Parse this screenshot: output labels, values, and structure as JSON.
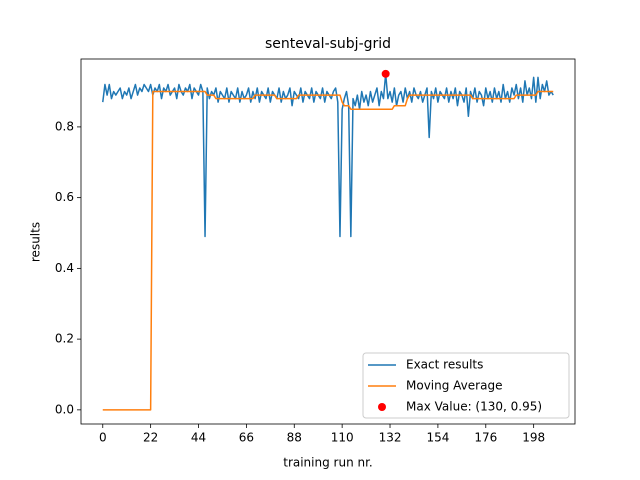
{
  "chart_data": {
    "type": "line",
    "title": "senteval-subj-grid",
    "xlabel": "training run nr.",
    "ylabel": "results",
    "x": [
      0,
      1,
      2,
      3,
      4,
      5,
      6,
      7,
      8,
      9,
      10,
      11,
      12,
      13,
      14,
      15,
      16,
      17,
      18,
      19,
      20,
      21,
      22,
      23,
      24,
      25,
      26,
      27,
      28,
      29,
      30,
      31,
      32,
      33,
      34,
      35,
      36,
      37,
      38,
      39,
      40,
      41,
      42,
      43,
      44,
      45,
      46,
      47,
      48,
      49,
      50,
      51,
      52,
      53,
      54,
      55,
      56,
      57,
      58,
      59,
      60,
      61,
      62,
      63,
      64,
      65,
      66,
      67,
      68,
      69,
      70,
      71,
      72,
      73,
      74,
      75,
      76,
      77,
      78,
      79,
      80,
      81,
      82,
      83,
      84,
      85,
      86,
      87,
      88,
      89,
      90,
      91,
      92,
      93,
      94,
      95,
      96,
      97,
      98,
      99,
      100,
      101,
      102,
      103,
      104,
      105,
      106,
      107,
      108,
      109,
      110,
      111,
      112,
      113,
      114,
      115,
      116,
      117,
      118,
      119,
      120,
      121,
      122,
      123,
      124,
      125,
      126,
      127,
      128,
      129,
      130,
      131,
      132,
      133,
      134,
      135,
      136,
      137,
      138,
      139,
      140,
      141,
      142,
      143,
      144,
      145,
      146,
      147,
      148,
      149,
      150,
      151,
      152,
      153,
      154,
      155,
      156,
      157,
      158,
      159,
      160,
      161,
      162,
      163,
      164,
      165,
      166,
      167,
      168,
      169,
      170,
      171,
      172,
      173,
      174,
      175,
      176,
      177,
      178,
      179,
      180,
      181,
      182,
      183,
      184,
      185,
      186,
      187,
      188,
      189,
      190,
      191,
      192,
      193,
      194,
      195,
      196,
      197,
      198,
      199,
      200,
      201,
      202,
      203,
      204,
      205,
      206,
      207
    ],
    "series": [
      {
        "name": "Exact results",
        "color": "#1f77b4",
        "style": "line",
        "values": [
          0.87,
          0.92,
          0.89,
          0.92,
          0.88,
          0.9,
          0.89,
          0.9,
          0.91,
          0.88,
          0.9,
          0.89,
          0.91,
          0.88,
          0.9,
          0.92,
          0.89,
          0.91,
          0.9,
          0.92,
          0.91,
          0.9,
          0.92,
          0.89,
          0.91,
          0.9,
          0.92,
          0.88,
          0.91,
          0.9,
          0.92,
          0.89,
          0.9,
          0.91,
          0.88,
          0.92,
          0.9,
          0.89,
          0.91,
          0.9,
          0.92,
          0.88,
          0.91,
          0.9,
          0.89,
          0.92,
          0.9,
          0.49,
          0.91,
          0.88,
          0.9,
          0.89,
          0.91,
          0.87,
          0.9,
          0.89,
          0.88,
          0.91,
          0.87,
          0.9,
          0.89,
          0.88,
          0.91,
          0.87,
          0.9,
          0.88,
          0.89,
          0.91,
          0.87,
          0.9,
          0.88,
          0.91,
          0.87,
          0.9,
          0.89,
          0.88,
          0.91,
          0.87,
          0.9,
          0.89,
          0.88,
          0.91,
          0.87,
          0.9,
          0.88,
          0.89,
          0.91,
          0.86,
          0.9,
          0.89,
          0.88,
          0.91,
          0.87,
          0.9,
          0.89,
          0.88,
          0.91,
          0.87,
          0.9,
          0.89,
          0.88,
          0.91,
          0.87,
          0.9,
          0.89,
          0.88,
          0.9,
          0.91,
          0.87,
          0.49,
          0.85,
          0.88,
          0.9,
          0.86,
          0.49,
          0.88,
          0.86,
          0.89,
          0.85,
          0.9,
          0.87,
          0.89,
          0.86,
          0.9,
          0.87,
          0.89,
          0.91,
          0.86,
          0.9,
          0.88,
          0.95,
          0.88,
          0.9,
          0.87,
          0.91,
          0.86,
          0.89,
          0.9,
          0.87,
          0.91,
          0.88,
          0.9,
          0.87,
          0.91,
          0.89,
          0.88,
          0.9,
          0.87,
          0.89,
          0.91,
          0.77,
          0.9,
          0.88,
          0.91,
          0.87,
          0.9,
          0.89,
          0.88,
          0.91,
          0.87,
          0.9,
          0.88,
          0.91,
          0.86,
          0.9,
          0.89,
          0.87,
          0.91,
          0.83,
          0.9,
          0.88,
          0.91,
          0.87,
          0.9,
          0.89,
          0.86,
          0.91,
          0.88,
          0.9,
          0.87,
          0.91,
          0.88,
          0.9,
          0.87,
          0.92,
          0.88,
          0.9,
          0.87,
          0.91,
          0.89,
          0.92,
          0.88,
          0.91,
          0.87,
          0.93,
          0.89,
          0.91,
          0.88,
          0.94,
          0.87,
          0.94,
          0.88,
          0.92,
          0.9,
          0.93,
          0.89,
          0.9,
          0.89
        ]
      },
      {
        "name": "Moving Average",
        "color": "#ff7f0e",
        "style": "line",
        "values": [
          0,
          0,
          0,
          0,
          0,
          0,
          0,
          0,
          0,
          0,
          0,
          0,
          0,
          0,
          0,
          0,
          0,
          0,
          0,
          0,
          0,
          0,
          0,
          0.9,
          0.9,
          0.9,
          0.9,
          0.9,
          0.9,
          0.9,
          0.9,
          0.9,
          0.9,
          0.9,
          0.9,
          0.9,
          0.9,
          0.9,
          0.9,
          0.9,
          0.9,
          0.9,
          0.9,
          0.9,
          0.9,
          0.9,
          0.9,
          0.9,
          0.89,
          0.89,
          0.89,
          0.89,
          0.88,
          0.88,
          0.88,
          0.88,
          0.88,
          0.88,
          0.88,
          0.88,
          0.88,
          0.88,
          0.88,
          0.88,
          0.88,
          0.88,
          0.88,
          0.88,
          0.88,
          0.88,
          0.89,
          0.89,
          0.89,
          0.89,
          0.89,
          0.89,
          0.89,
          0.89,
          0.89,
          0.89,
          0.88,
          0.88,
          0.88,
          0.88,
          0.88,
          0.88,
          0.88,
          0.88,
          0.88,
          0.88,
          0.89,
          0.89,
          0.89,
          0.89,
          0.89,
          0.89,
          0.89,
          0.89,
          0.89,
          0.89,
          0.89,
          0.89,
          0.89,
          0.89,
          0.89,
          0.89,
          0.89,
          0.89,
          0.89,
          0.89,
          0.87,
          0.86,
          0.86,
          0.86,
          0.85,
          0.85,
          0.85,
          0.85,
          0.85,
          0.85,
          0.85,
          0.85,
          0.85,
          0.85,
          0.85,
          0.85,
          0.85,
          0.85,
          0.85,
          0.85,
          0.85,
          0.85,
          0.85,
          0.85,
          0.86,
          0.86,
          0.86,
          0.86,
          0.86,
          0.86,
          0.88,
          0.89,
          0.89,
          0.89,
          0.89,
          0.89,
          0.89,
          0.89,
          0.89,
          0.89,
          0.89,
          0.89,
          0.89,
          0.89,
          0.89,
          0.89,
          0.89,
          0.89,
          0.89,
          0.89,
          0.89,
          0.89,
          0.89,
          0.89,
          0.89,
          0.89,
          0.89,
          0.89,
          0.89,
          0.89,
          0.88,
          0.88,
          0.88,
          0.88,
          0.88,
          0.88,
          0.88,
          0.88,
          0.88,
          0.88,
          0.88,
          0.88,
          0.88,
          0.88,
          0.88,
          0.88,
          0.88,
          0.88,
          0.88,
          0.88,
          0.89,
          0.89,
          0.89,
          0.89,
          0.89,
          0.89,
          0.89,
          0.89,
          0.89,
          0.89,
          0.9,
          0.9,
          0.9,
          0.9,
          0.9,
          0.9,
          0.9,
          0.9
        ]
      },
      {
        "name": "Max Value: (130, 0.95)",
        "color": "#ff0000",
        "style": "marker",
        "x": [
          130
        ],
        "values": [
          0.95
        ]
      }
    ],
    "xlim": [
      -10,
      217
    ],
    "ylim": [
      -0.04,
      0.992
    ],
    "xticks": [
      0,
      22,
      44,
      66,
      88,
      110,
      132,
      154,
      176,
      198
    ],
    "yticks": [
      {
        "value": 0,
        "label": "0.0"
      },
      0.2,
      0.4,
      0.6,
      0.8
    ],
    "legend": "lower right"
  }
}
